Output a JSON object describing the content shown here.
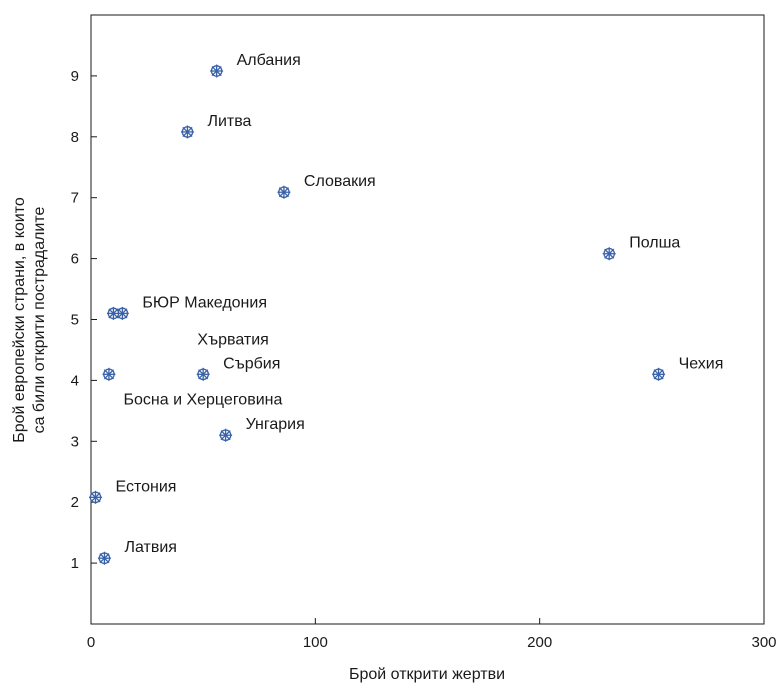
{
  "chart_data": {
    "type": "scatter",
    "title": "",
    "xlabel": "Брой открити жертви",
    "ylabel_lines": [
      "Брой европейски страни, в които",
      "са били открити пострадалите"
    ],
    "xlim": [
      0,
      300
    ],
    "ylim": [
      0,
      10
    ],
    "xticks": [
      0,
      100,
      200,
      300
    ],
    "yticks": [
      1,
      2,
      3,
      4,
      5,
      6,
      7,
      8,
      9
    ],
    "grid": false,
    "legend": "none",
    "marker_color": "#3a62a8",
    "points": [
      {
        "label": "Албания",
        "x": 56,
        "y": 9.08,
        "label_pos": "right"
      },
      {
        "label": "Литва",
        "x": 43,
        "y": 8.08,
        "label_pos": "right"
      },
      {
        "label": "Словакия",
        "x": 86,
        "y": 7.09,
        "label_pos": "right"
      },
      {
        "label": "Полша",
        "x": 231,
        "y": 6.08,
        "label_pos": "right"
      },
      {
        "label": "БЮР Македония",
        "x": 14,
        "y": 5.1,
        "label_pos": "right"
      },
      {
        "label": "Хърватия",
        "x": 10,
        "y": 5.1,
        "label_pos": "below-right"
      },
      {
        "label": "Сърбия",
        "x": 50,
        "y": 4.1,
        "label_pos": "right"
      },
      {
        "label": "Босна и Херцеговина",
        "x": 8,
        "y": 4.1,
        "label_pos": "below"
      },
      {
        "label": "Чехия",
        "x": 253,
        "y": 4.1,
        "label_pos": "right"
      },
      {
        "label": "Унгария",
        "x": 60,
        "y": 3.1,
        "label_pos": "right"
      },
      {
        "label": "Естония",
        "x": 2,
        "y": 2.08,
        "label_pos": "right"
      },
      {
        "label": "Латвия",
        "x": 6,
        "y": 1.08,
        "label_pos": "right"
      }
    ]
  }
}
